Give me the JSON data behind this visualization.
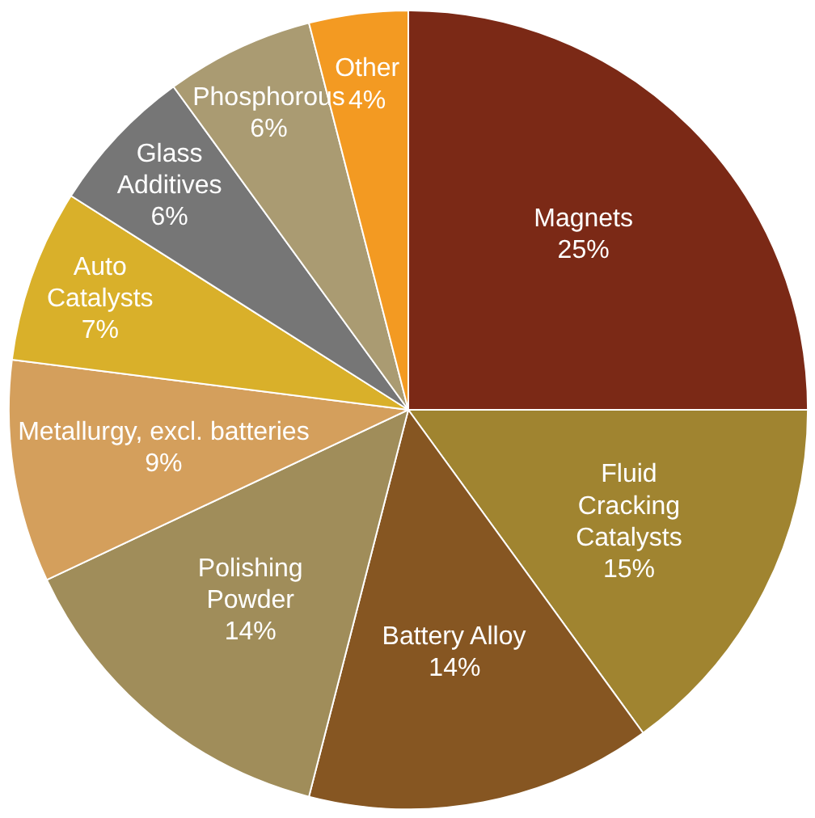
{
  "chart_data": {
    "type": "pie",
    "categories": [
      "Magnets",
      "Fluid\nCracking\nCatalysts",
      "Battery Alloy",
      "Polishing\nPowder",
      "Metallurgy, excl. batteries",
      "Auto\nCatalysts",
      "Glass\nAdditives",
      "Phosphorous",
      "Other"
    ],
    "values": [
      25,
      15,
      14,
      14,
      9,
      7,
      6,
      6,
      4
    ],
    "value_labels": [
      "25%",
      "15%",
      "14%",
      "14%",
      "9%",
      "7%",
      "6%",
      "6%",
      "4%"
    ],
    "colors": [
      "#7b2916",
      "#a08430",
      "#865622",
      "#a08d5a",
      "#d49f5c",
      "#d9b02a",
      "#767676",
      "#aa9b72",
      "#f39a22"
    ]
  }
}
